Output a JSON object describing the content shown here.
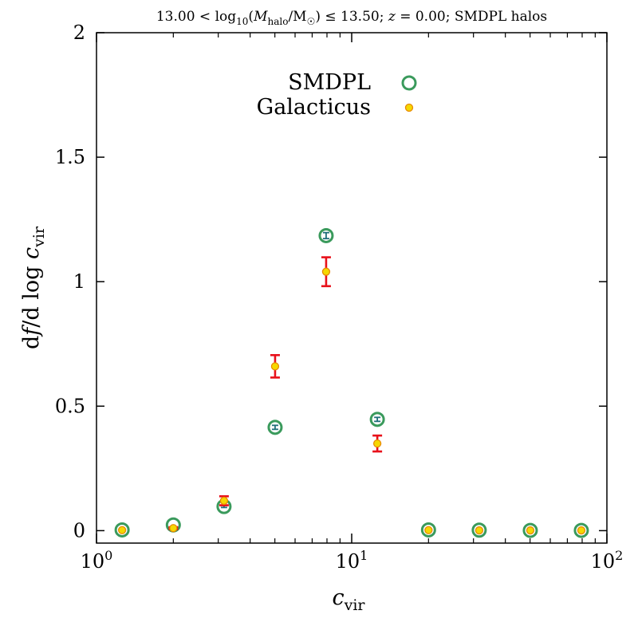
{
  "chart_data": {
    "type": "scatter",
    "title": "13.00 < log10(Mhalo/M☉) ≤ 13.50; z = 0.00; SMDPL halos",
    "title_parts": {
      "lead": "13.00 < log",
      "log_base": "10",
      "open": "(",
      "mass_symbol": "M",
      "mass_sub": "halo",
      "slash": "/M",
      "sun": "☉",
      "close": ") ≤ 13.50; ",
      "z_symbol": "z",
      "rest": " = 0.00; SMDPL halos"
    },
    "xlabel": {
      "symbol": "c",
      "sub": "vir"
    },
    "ylabel": {
      "d1": "d",
      "f": "f",
      "mid": "/d log ",
      "c": "c",
      "sub": "vir"
    },
    "x_scale": "log",
    "xlim": [
      1,
      100
    ],
    "ylim": [
      -0.05,
      2.0
    ],
    "x_ticks": [
      {
        "value": 1,
        "base": "10",
        "exp": "0"
      },
      {
        "value": 10,
        "base": "10",
        "exp": "1"
      },
      {
        "value": 100,
        "base": "10",
        "exp": "2"
      }
    ],
    "y_ticks": [
      {
        "value": 0,
        "label": "0"
      },
      {
        "value": 0.5,
        "label": "0.5"
      },
      {
        "value": 1,
        "label": "1"
      },
      {
        "value": 1.5,
        "label": "1.5"
      },
      {
        "value": 2,
        "label": "2"
      }
    ],
    "legend": {
      "placement": "top-center",
      "entries": [
        "SMDPL",
        "Galacticus"
      ]
    },
    "series": [
      {
        "name": "SMDPL",
        "marker": "open-circle",
        "color": "#3a9a5c",
        "errorbar_color": "#1f6f7a",
        "points": [
          {
            "x": 1.26,
            "y": 0.003,
            "err": 0.0
          },
          {
            "x": 2.0,
            "y": 0.023,
            "err": 0.0
          },
          {
            "x": 3.16,
            "y": 0.097,
            "err": 0.004
          },
          {
            "x": 5.01,
            "y": 0.415,
            "err": 0.008
          },
          {
            "x": 7.94,
            "y": 1.185,
            "err": 0.012
          },
          {
            "x": 12.6,
            "y": 0.447,
            "err": 0.008
          },
          {
            "x": 20.0,
            "y": 0.003,
            "err": 0.0
          },
          {
            "x": 31.6,
            "y": 0.002,
            "err": 0.0
          },
          {
            "x": 50.1,
            "y": 0.001,
            "err": 0.0
          },
          {
            "x": 79.4,
            "y": 0.001,
            "err": 0.0
          }
        ]
      },
      {
        "name": "Galacticus",
        "marker": "filled-circle",
        "color": "#f5d800",
        "edge_color": "#e88a00",
        "errorbar_color": "#e8101a",
        "points": [
          {
            "x": 1.26,
            "y": 0.002,
            "err": 0.0
          },
          {
            "x": 2.0,
            "y": 0.01,
            "err": 0.004
          },
          {
            "x": 3.16,
            "y": 0.12,
            "err": 0.018
          },
          {
            "x": 5.01,
            "y": 0.66,
            "err": 0.045
          },
          {
            "x": 7.94,
            "y": 1.04,
            "err": 0.058
          },
          {
            "x": 12.6,
            "y": 0.35,
            "err": 0.032
          },
          {
            "x": 20.0,
            "y": 0.002,
            "err": 0.0
          },
          {
            "x": 31.6,
            "y": 0.001,
            "err": 0.0
          },
          {
            "x": 50.1,
            "y": 0.001,
            "err": 0.0
          },
          {
            "x": 79.4,
            "y": 0.001,
            "err": 0.0
          }
        ]
      }
    ]
  }
}
